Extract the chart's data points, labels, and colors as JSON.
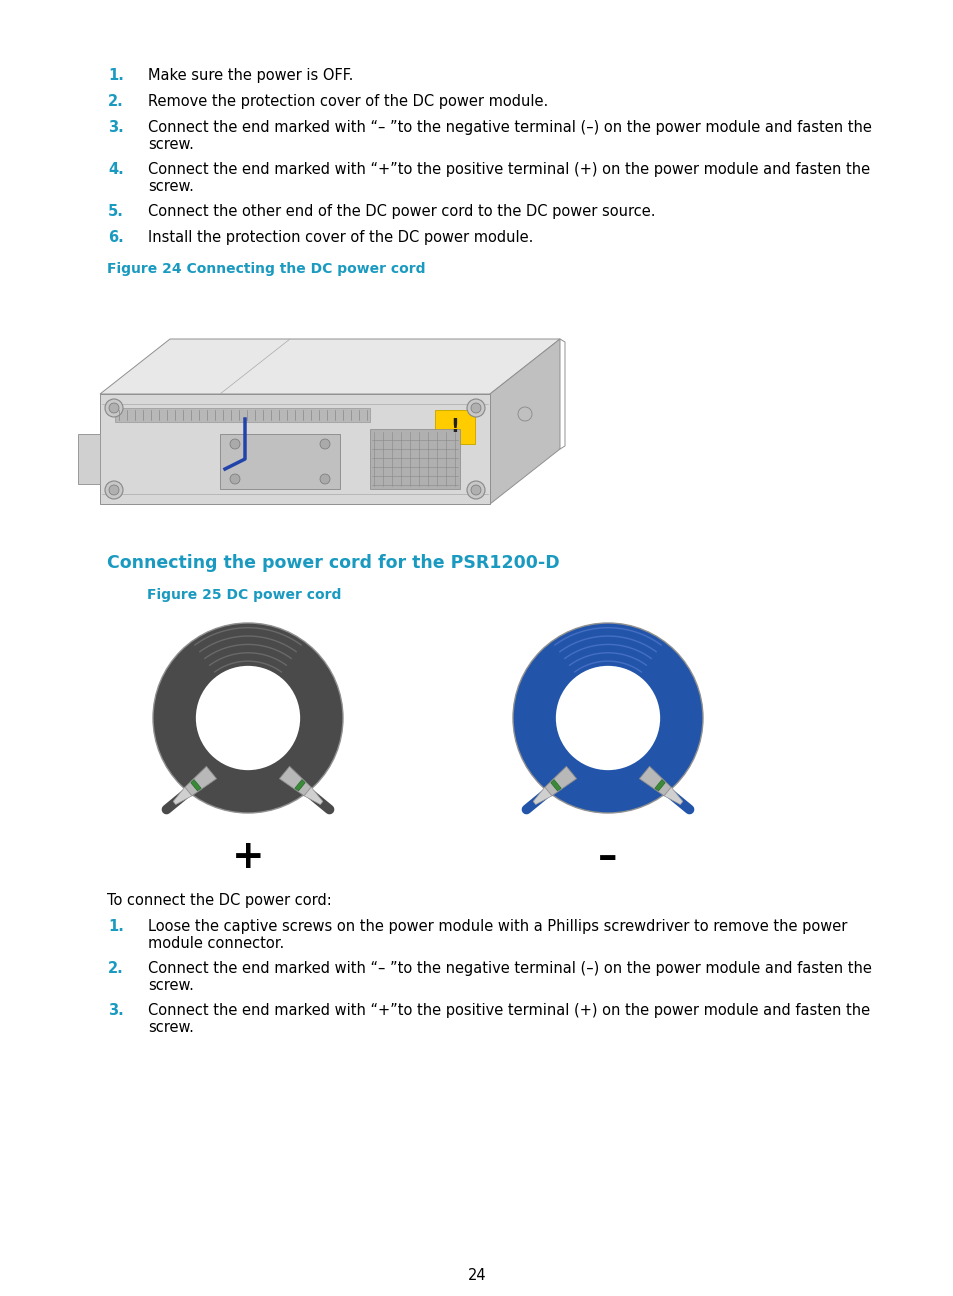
{
  "bg_color": "#ffffff",
  "text_color": "#000000",
  "blue_color": "#1a9ac0",
  "page_number": "24",
  "section_title": "Connecting the power cord for the PSR1200-D",
  "fig24_caption": "Figure 24 Connecting the DC power cord",
  "fig25_caption": "Figure 25 DC power cord",
  "intro_text": "To connect the DC power cord:",
  "steps_top": [
    {
      "num": "1.",
      "text": "Make sure the power is OFF."
    },
    {
      "num": "2.",
      "text": "Remove the protection cover of the DC power module."
    },
    {
      "num": "3.",
      "text": "Connect the end marked with “– ”to the negative terminal (–) on the power module and fasten the\nscrew."
    },
    {
      "num": "4.",
      "text": "Connect the end marked with “+”to the positive terminal (+) on the power module and fasten the\nscrew."
    },
    {
      "num": "5.",
      "text": "Connect the other end of the DC power cord to the DC power source."
    },
    {
      "num": "6.",
      "text": "Install the protection cover of the DC power module."
    }
  ],
  "steps_bottom": [
    {
      "num": "1.",
      "text": "Loose the captive screws on the power module with a Phillips screwdriver to remove the power\nmodule connector."
    },
    {
      "num": "2.",
      "text": "Connect the end marked with “– ”to the negative terminal (–) on the power module and fasten the\nscrew."
    },
    {
      "num": "3.",
      "text": "Connect the end marked with “+”to the positive terminal (+) on the power module and fasten the\nscrew."
    }
  ],
  "plus_sign": "+",
  "minus_sign": "–",
  "font_size_body": 10.5,
  "font_size_caption": 10.0,
  "font_size_section": 12.5,
  "font_size_plus": 28,
  "dark_cable_color": "#4a4a4a",
  "dark_cable_inner": "#3a3a3a",
  "blue_cable_color": "#2255aa",
  "blue_cable_inner": "#1a3a88",
  "cable_highlight": "#888888",
  "connector_gray": "#b0b0b0",
  "connector_dark": "#888888",
  "connector_green": "#3a8a3a",
  "connector_green_dark": "#2a6a2a",
  "chassis_face": "#d8d8d8",
  "chassis_top": "#e8e8e8",
  "chassis_right": "#c0c0c0",
  "chassis_edge": "#909090"
}
